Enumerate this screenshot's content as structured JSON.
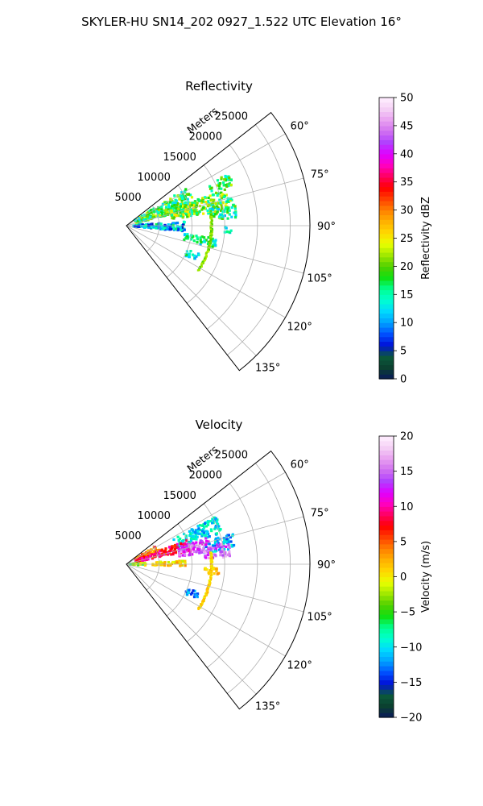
{
  "title": "SKYLER-HU  SN14_202  0927_1.522 UTC Elevation 16°",
  "chart_data": [
    {
      "type": "heatmap",
      "subtype": "polar-sector (PPI radar)",
      "title": "Reflectivity",
      "range_label": "Meters",
      "range_ticks": [
        5000,
        10000,
        15000,
        20000,
        25000
      ],
      "range_tick_labels": [
        "5000",
        "10000",
        "15000",
        "20000",
        "25000"
      ],
      "range_max": 28000,
      "azimuth_range_deg": [
        52,
        142
      ],
      "azimuth_ticks_deg": [
        60,
        75,
        90,
        105,
        120,
        135
      ],
      "azimuth_tick_labels": [
        "60°",
        "75°",
        "90°",
        "105°",
        "120°",
        "135°"
      ],
      "grid": true,
      "colorbar": {
        "label": "Reflectivity dBZ",
        "min": 0,
        "max": 50,
        "ticks": [
          0,
          5,
          10,
          15,
          20,
          25,
          30,
          35,
          40,
          45,
          50
        ],
        "tick_labels": [
          "0",
          "5",
          "10",
          "15",
          "20",
          "25",
          "30",
          "35",
          "40",
          "45",
          "50"
        ],
        "stops": [
          "#0a1a5a",
          "#0b4030",
          "#0b5a3a",
          "#0010d8",
          "#0050ff",
          "#00a0ff",
          "#00d8ff",
          "#00ffd0",
          "#00ff90",
          "#10e010",
          "#50d000",
          "#a0e800",
          "#e8ff00",
          "#ffd800",
          "#ffb000",
          "#ff8000",
          "#ff4000",
          "#ff0000",
          "#ff0060",
          "#ff00c0",
          "#e000ff",
          "#b040ff",
          "#d070f0",
          "#e8a0f0",
          "#f5d0f5",
          "#fff0ff"
        ]
      },
      "echo_regions": [
        {
          "az": [
            58,
            76
          ],
          "r": [
            1500,
            11000
          ],
          "value": 18,
          "spread": 6
        },
        {
          "az": [
            70,
            82
          ],
          "r": [
            7000,
            16000
          ],
          "value": 20,
          "spread": 6
        },
        {
          "az": [
            63,
            70
          ],
          "r": [
            14000,
            17500
          ],
          "value": 18,
          "spread": 5
        },
        {
          "az": [
            75,
            86
          ],
          "r": [
            13000,
            17000
          ],
          "value": 17,
          "spread": 6
        },
        {
          "az": [
            86,
            96
          ],
          "r": [
            1000,
            9000
          ],
          "value": 11,
          "spread": 6
        },
        {
          "az": [
            90,
            95
          ],
          "r": [
            15000,
            16000
          ],
          "value": 14,
          "spread": 4
        },
        {
          "az": [
            98,
            104
          ],
          "r": [
            9000,
            14000
          ],
          "value": 15,
          "spread": 4
        },
        {
          "az": [
            111,
            117
          ],
          "r": [
            10000,
            12000
          ],
          "value": 14,
          "spread": 4
        }
      ],
      "ring_echo": {
        "r": 13000,
        "az": [
          82,
          122
        ],
        "value": 21
      }
    },
    {
      "type": "heatmap",
      "subtype": "polar-sector (PPI radar)",
      "title": "Velocity",
      "range_label": "Meters",
      "range_ticks": [
        5000,
        10000,
        15000,
        20000,
        25000
      ],
      "range_tick_labels": [
        "5000",
        "10000",
        "15000",
        "20000",
        "25000"
      ],
      "range_max": 28000,
      "azimuth_range_deg": [
        52,
        142
      ],
      "azimuth_ticks_deg": [
        60,
        75,
        90,
        105,
        120,
        135
      ],
      "azimuth_tick_labels": [
        "60°",
        "75°",
        "90°",
        "105°",
        "120°",
        "135°"
      ],
      "grid": true,
      "colorbar": {
        "label": "Velocity (m/s)",
        "min": -20,
        "max": 20,
        "ticks": [
          -20,
          -15,
          -10,
          -5,
          0,
          5,
          10,
          15,
          20
        ],
        "tick_labels": [
          "−20",
          "−15",
          "−10",
          "−5",
          "0",
          "5",
          "10",
          "15",
          "20"
        ],
        "stops": [
          "#0a1a5a",
          "#0b4030",
          "#0b5a3a",
          "#0010d8",
          "#0050ff",
          "#00a0ff",
          "#00d8ff",
          "#00ffd0",
          "#00ff90",
          "#10e010",
          "#50d000",
          "#a0e800",
          "#e8ff00",
          "#ffd800",
          "#ffb000",
          "#ff8000",
          "#ff4000",
          "#ff0000",
          "#ff0060",
          "#ff00c0",
          "#e000ff",
          "#b040ff",
          "#d070f0",
          "#e8a0f0",
          "#f5d0f5",
          "#fff0ff"
        ]
      },
      "echo_regions": [
        {
          "az": [
            62,
            72
          ],
          "r": [
            8000,
            15500
          ],
          "value": -10,
          "spread": 3
        },
        {
          "az": [
            74,
            82
          ],
          "r": [
            12000,
            17000
          ],
          "value": -11,
          "spread": 3
        },
        {
          "az": [
            58,
            68
          ],
          "r": [
            1500,
            5500
          ],
          "value": 4,
          "spread": 4
        },
        {
          "az": [
            68,
            78
          ],
          "r": [
            1500,
            10000
          ],
          "value": 8,
          "spread": 3
        },
        {
          "az": [
            72,
            82
          ],
          "r": [
            8000,
            13000
          ],
          "value": 14,
          "spread": 3
        },
        {
          "az": [
            78,
            86
          ],
          "r": [
            12000,
            16000
          ],
          "value": 15,
          "spread": 3
        },
        {
          "az": [
            86,
            92
          ],
          "r": [
            4000,
            9000
          ],
          "value": 1,
          "spread": 3
        },
        {
          "az": [
            86,
            94
          ],
          "r": [
            500,
            3000
          ],
          "value": -3,
          "spread": 4
        },
        {
          "az": [
            92,
            97
          ],
          "r": [
            12000,
            14500
          ],
          "value": 2,
          "spread": 2
        },
        {
          "az": [
            111,
            117
          ],
          "r": [
            10000,
            12000
          ],
          "value": -12,
          "spread": 3
        }
      ],
      "ring_echo": {
        "r": 13000,
        "az": [
          82,
          122
        ],
        "value": 1
      }
    }
  ]
}
